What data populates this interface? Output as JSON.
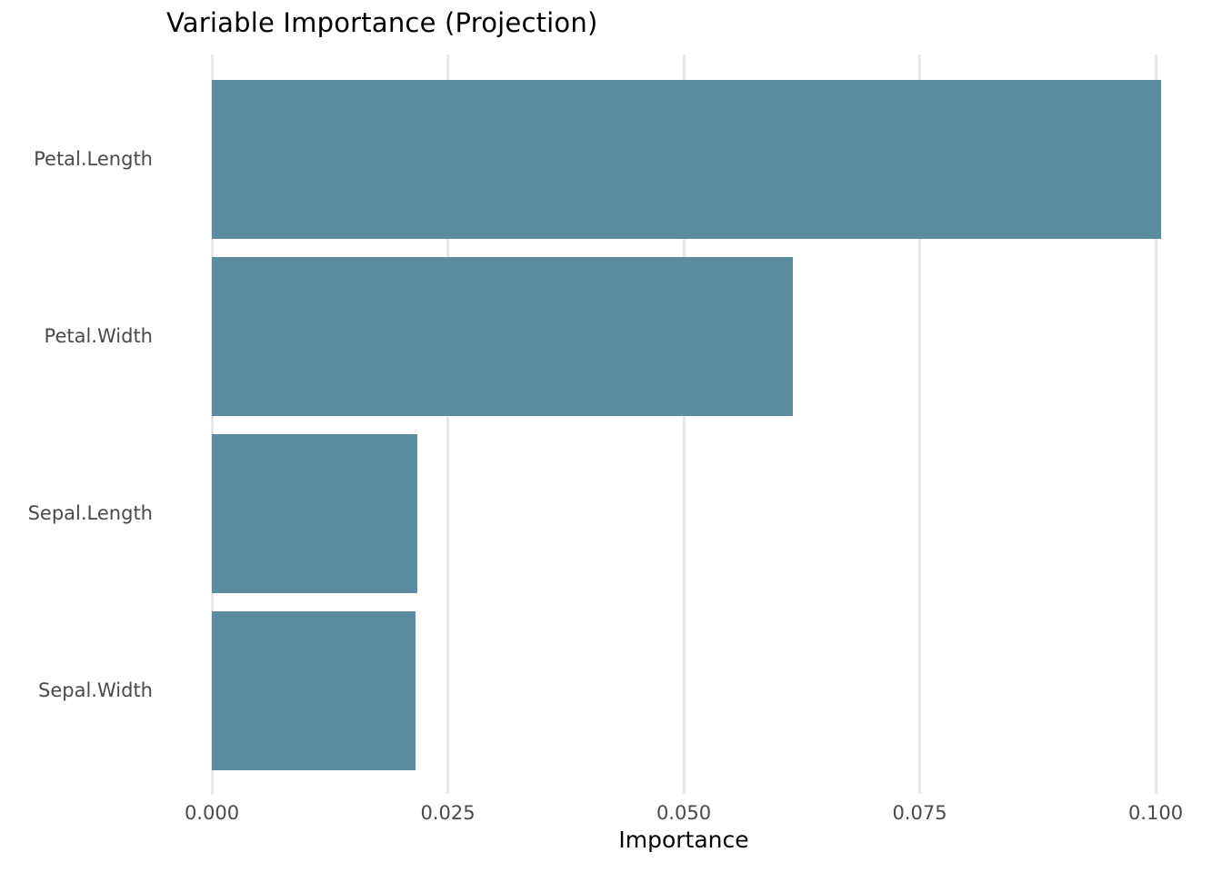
{
  "chart_data": {
    "type": "bar",
    "orientation": "horizontal",
    "title": "Variable Importance (Projection)",
    "xlabel": "Importance",
    "ylabel": "",
    "categories": [
      "Petal.Length",
      "Petal.Width",
      "Sepal.Length",
      "Sepal.Width"
    ],
    "values": [
      0.1006,
      0.0616,
      0.0218,
      0.0216
    ],
    "sort_order": "descending",
    "xlim": [
      0,
      0.1056
    ],
    "xticks": [
      0.0,
      0.025,
      0.05,
      0.075,
      0.1
    ],
    "xtick_labels": [
      "0.000",
      "0.025",
      "0.050",
      "0.075",
      "0.100"
    ],
    "grid": "vertical-only",
    "legend": "none",
    "bar_color": "#5C8CA2",
    "grid_color": "#E8E8E8",
    "background_color": "#FFFFFF",
    "label_color": "#4A4A4A",
    "title_color": "#000000"
  }
}
